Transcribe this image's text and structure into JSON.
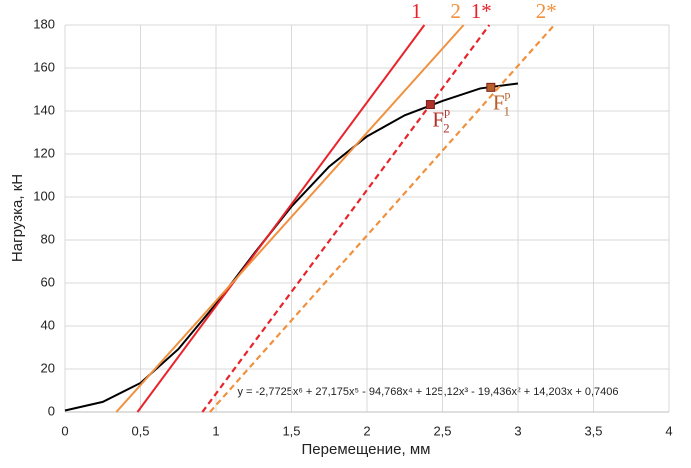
{
  "chart_data": {
    "type": "line",
    "xlabel": "Перемещение, мм",
    "ylabel": "Нагрузка, кН",
    "xlim": [
      0,
      4
    ],
    "ylim": [
      0,
      180
    ],
    "xticks": [
      0,
      {
        "value": 0.5,
        "label": "0,5"
      },
      1,
      {
        "value": 1.5,
        "label": "1,5"
      },
      2,
      {
        "value": 2.5,
        "label": "2,5"
      },
      3,
      {
        "value": 3.5,
        "label": "3,5"
      },
      4
    ],
    "yticks": [
      0,
      20,
      40,
      60,
      80,
      100,
      120,
      140,
      160,
      180
    ],
    "grid": true,
    "series": [
      {
        "color": "#000000",
        "dashed": false,
        "x": [
          0,
          0.25,
          0.5,
          0.75,
          1,
          1.25,
          1.5,
          1.75,
          2,
          2.25,
          2.5,
          2.75,
          3
        ],
        "values": [
          0.7,
          4.7,
          13.5,
          29.2,
          50.3,
          73.5,
          95.6,
          114.2,
          128.2,
          138,
          144.7,
          150.5,
          152.8
        ]
      },
      {
        "name": "1",
        "color": "#e8242b",
        "dashed": false,
        "x": [
          0.48,
          2.38
        ],
        "values": [
          0,
          180
        ]
      },
      {
        "name": "2",
        "color": "#f0913f",
        "dashed": false,
        "x": [
          0.34,
          2.64
        ],
        "values": [
          0,
          180
        ]
      },
      {
        "name": "1*",
        "color": "#e8242b",
        "dashed": true,
        "x": [
          0.91,
          2.81
        ],
        "values": [
          0,
          180
        ]
      },
      {
        "name": "2*",
        "color": "#f0913f",
        "dashed": true,
        "x": [
          0.96,
          3.24
        ],
        "values": [
          0,
          180
        ]
      }
    ],
    "points": [
      {
        "label": "F",
        "sub": "2",
        "sup": "p",
        "color": "#b0302a",
        "x": 2.42,
        "y": 143
      },
      {
        "label": "F",
        "sub": "1",
        "sup": "p",
        "color": "#b8602a",
        "x": 2.82,
        "y": 151
      }
    ],
    "equation": "y = -2,7725x⁶ + 27,175x⁵ - 94,768x⁴ + 125,12x³ - 19,436x² + 14,203x + 0,7406"
  }
}
